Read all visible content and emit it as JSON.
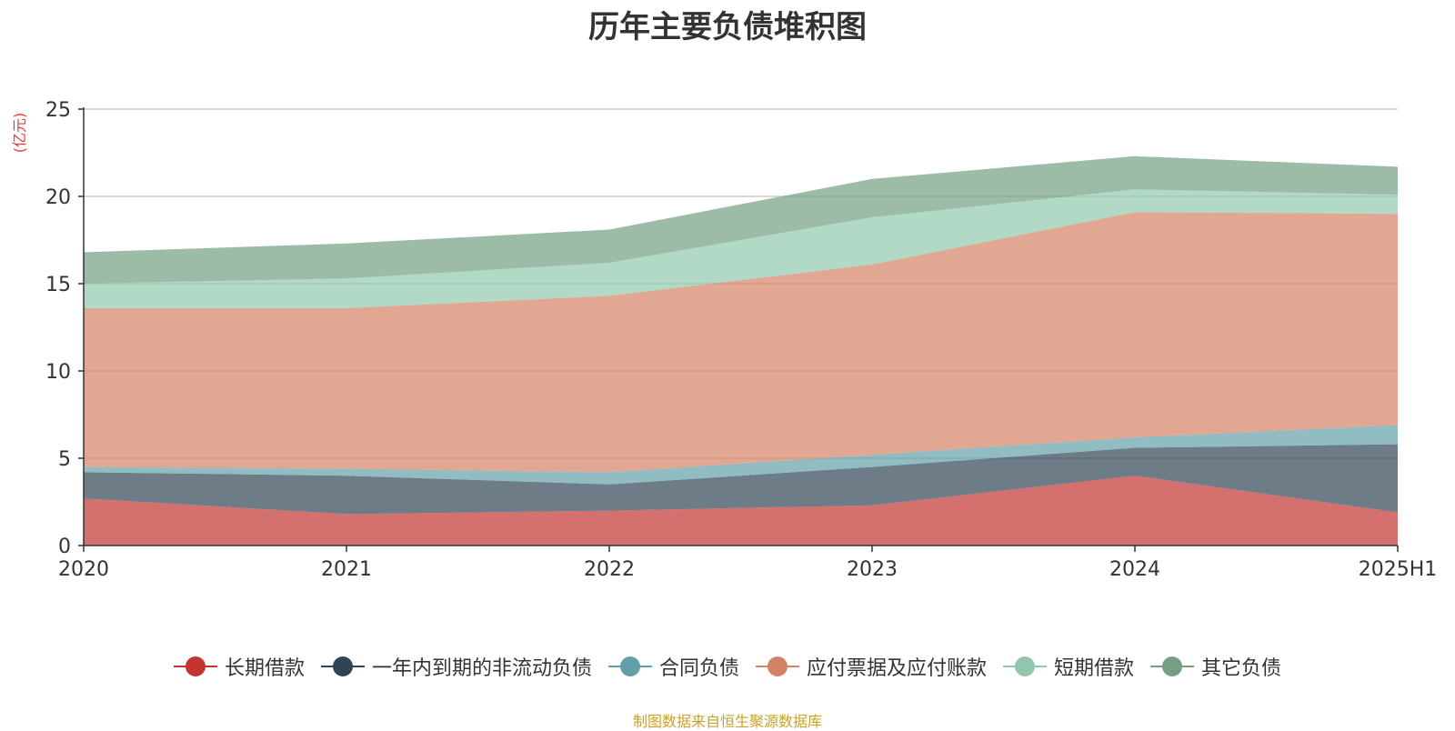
{
  "chart_data": {
    "type": "area",
    "stacked": true,
    "title": "历年主要负债堆积图",
    "ylabel": "(亿元)",
    "xlabel": "",
    "categories": [
      "2020",
      "2021",
      "2022",
      "2023",
      "2024",
      "2025H1"
    ],
    "ylim": [
      0,
      25
    ],
    "yticks": [
      0,
      5,
      10,
      15,
      20,
      25
    ],
    "grid": true,
    "legend_position": "bottom",
    "series": [
      {
        "name": "长期借款",
        "values": [
          2.7,
          1.8,
          2.0,
          2.3,
          4.0,
          1.9
        ],
        "color": "#c23531"
      },
      {
        "name": "一年内到期的非流动负债",
        "values": [
          1.5,
          2.2,
          1.5,
          2.2,
          1.6,
          3.9
        ],
        "color": "#2f4554"
      },
      {
        "name": "合同负债",
        "values": [
          0.3,
          0.4,
          0.7,
          0.7,
          0.6,
          1.1
        ],
        "color": "#61a0a8"
      },
      {
        "name": "应付票据及应付账款",
        "values": [
          9.1,
          9.2,
          10.1,
          10.9,
          12.9,
          12.1
        ],
        "color": "#d48265"
      },
      {
        "name": "短期借款",
        "values": [
          1.4,
          1.7,
          1.9,
          2.7,
          1.3,
          1.1
        ],
        "color": "#91c7ae"
      },
      {
        "name": "其它负债",
        "values": [
          1.8,
          2.0,
          1.9,
          2.2,
          1.9,
          1.6
        ],
        "color": "#749f83"
      }
    ]
  },
  "source_note": "制图数据来自恒生聚源数据库"
}
